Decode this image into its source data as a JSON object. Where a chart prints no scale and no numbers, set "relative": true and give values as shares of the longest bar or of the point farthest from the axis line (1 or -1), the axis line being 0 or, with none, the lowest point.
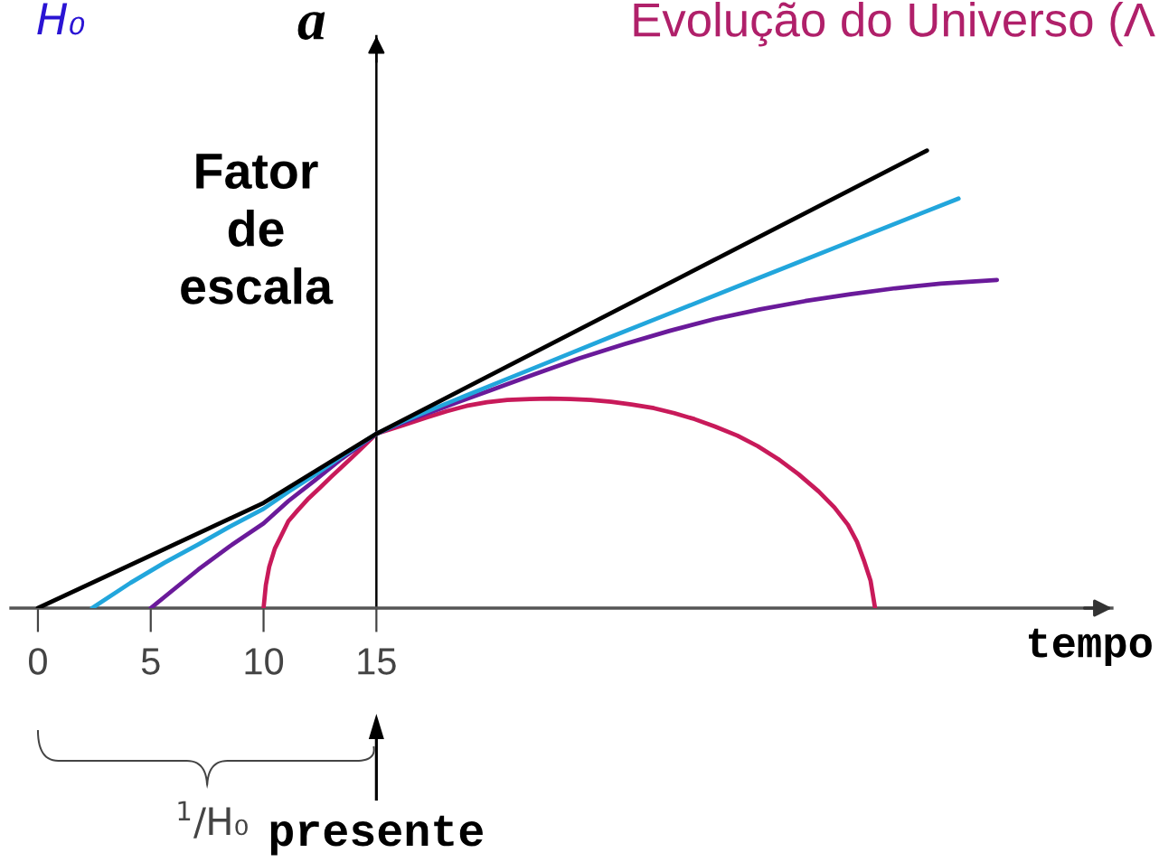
{
  "chart_data": {
    "type": "line",
    "title": "Evolução do Universo (Λ",
    "xlabel": "tempo",
    "ylabel": "a",
    "annotations": [
      "H₀",
      "Fator de escala",
      "$^{1}$/H₀"
    ],
    "relative": true,
    "xlim": [
      -1.2,
      47.6
    ],
    "xticks": [
      0,
      5,
      10,
      15
    ],
    "tick_labels": "x",
    "ref_lines": [
      {
        "axis": "x",
        "value": 15,
        "label": "presente"
      }
    ],
    "series": [
      {
        "color": "#c81a5a",
        "x": [
          10,
          10.1,
          10.25,
          10.5,
          10.8,
          11.1,
          11.5,
          12.0,
          12.5,
          13.0,
          13.5,
          14.0,
          14.5,
          15,
          16.2,
          17.2,
          18.1,
          19.0,
          19.9,
          20.8,
          21.8,
          22.7,
          23.6,
          24.5,
          25.4,
          26.3,
          27.3,
          28.2,
          29.1,
          30.0,
          31.0,
          31.9,
          32.8,
          33.7,
          34.6,
          35.3,
          35.9,
          36.3,
          36.6,
          36.9,
          37.1
        ],
        "values": [
          0,
          0.05,
          0.09,
          0.13,
          0.16,
          0.19,
          0.213,
          0.24,
          0.263,
          0.287,
          0.31,
          0.333,
          0.357,
          0.381,
          0.4,
          0.416,
          0.43,
          0.442,
          0.45,
          0.455,
          0.457,
          0.458,
          0.457,
          0.455,
          0.451,
          0.445,
          0.437,
          0.426,
          0.413,
          0.397,
          0.377,
          0.354,
          0.326,
          0.293,
          0.255,
          0.22,
          0.182,
          0.145,
          0.105,
          0.06,
          0
        ]
      },
      {
        "color": "#6a1a9a",
        "x": [
          5,
          5.9,
          7.1,
          8.5,
          10,
          11.1,
          12.3,
          13.4,
          15,
          16,
          17,
          18,
          19,
          20,
          22,
          24,
          26,
          28,
          30,
          32,
          34,
          36,
          38,
          40,
          42.5
        ],
        "values": [
          0,
          0.036,
          0.084,
          0.135,
          0.185,
          0.234,
          0.28,
          0.324,
          0.381,
          0.402,
          0.421,
          0.439,
          0.457,
          0.475,
          0.511,
          0.546,
          0.577,
          0.606,
          0.632,
          0.653,
          0.671,
          0.686,
          0.699,
          0.709,
          0.717
        ]
      },
      {
        "color": "#22a6dc",
        "x": [
          2.4,
          4.1,
          5.6,
          7.1,
          8.5,
          10,
          11.1,
          12.3,
          13.4,
          15,
          16,
          17,
          18,
          19,
          20,
          22.5,
          25.4,
          28,
          31,
          33.5,
          36.4,
          40.8
        ],
        "values": [
          0,
          0.055,
          0.099,
          0.139,
          0.178,
          0.217,
          0.254,
          0.292,
          0.329,
          0.381,
          0.404,
          0.425,
          0.445,
          0.465,
          0.485,
          0.535,
          0.593,
          0.644,
          0.703,
          0.752,
          0.809,
          0.895
        ]
      },
      {
        "color": "#000000",
        "x": [
          0,
          10,
          15,
          39.4
        ],
        "values": [
          0,
          0.23,
          0.381,
          1.0
        ]
      }
    ]
  }
}
